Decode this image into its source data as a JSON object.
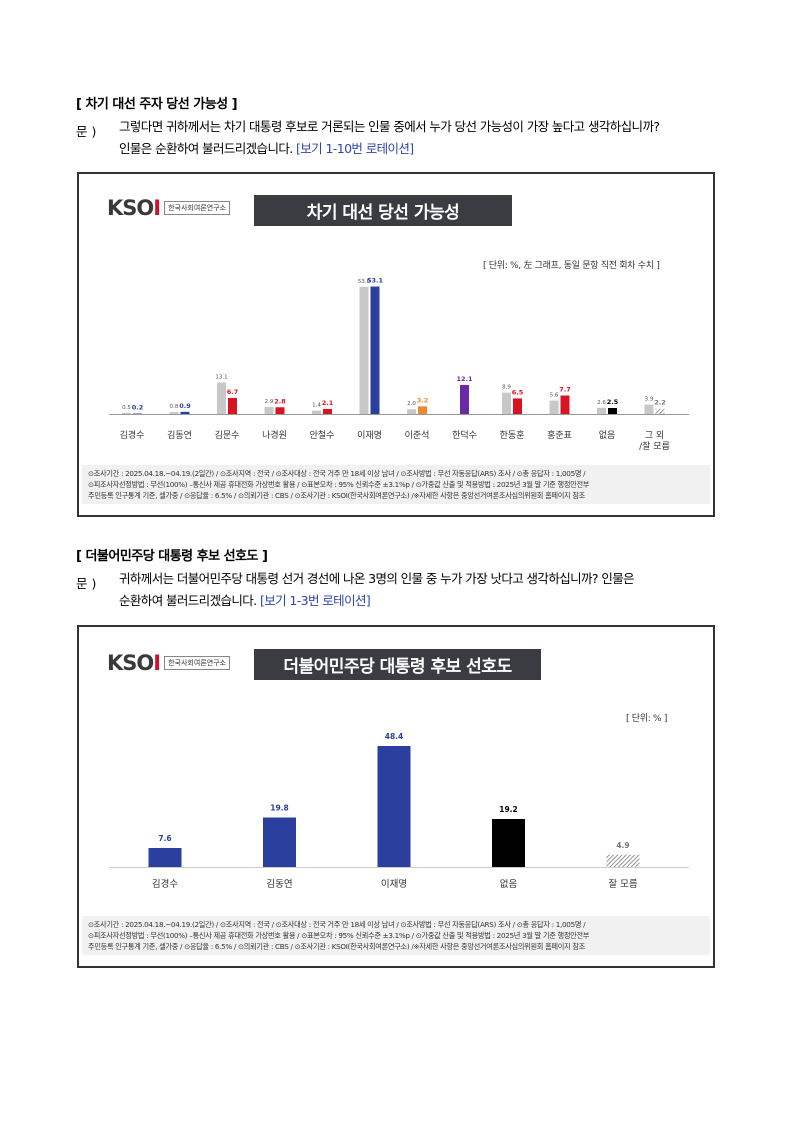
{
  "section1": {
    "heading": "[ 차기 대선 주자 당선 가능성 ]",
    "q_label": "문 )",
    "q_line1": "그렇다면 귀하께서는 차기 대통령 후보로 거론되는 인물 중에서 누가 당선 가능성이 가장 높다고 생각하십니까?",
    "q_line2": "인물은 순환하여 불러드리겠습니다.",
    "rotation": "[보기 1-10번 로테이션]"
  },
  "section2": {
    "heading": "[ 더불어민주당 대통령 후보 선호도 ]",
    "q_label": "문 )",
    "q_line1": "귀하께서는 더불어민주당 대통령 선거 경선에 나온 3명의 인물 중 누가 가장 낫다고 생각하십니까? 인물은",
    "q_line2": "순환하여 불러드리겠습니다.",
    "rotation": "[보기 1-3번 로테이션]"
  },
  "logo": {
    "mark": "KSOI",
    "sub": "한국사회여론연구소"
  },
  "footer": {
    "line1": "⊙조사기간 : 2025.04.18.~04.19.(2일간) / ⊙조사지역 : 전국 / ⊙조사대상 : 전국 거주 만 18세 이상 남녀 / ⊙조사방법 : 무선 자동응답(ARS) 조사 / ⊙총 응답자 : 1,005명 /",
    "line2": "⊙피조사자선정방법 : 무선(100%) –통신사 제공 휴대전화 가상번호 활용 / ⊙표본오차 : 95% 신뢰수준 ±3.1%p / ⊙가중값 산출 및 적용방법 : 2025년 3월 말 기준 행정안전부",
    "line3": "주민등록 인구통계 기준, 셀가중 / ⊙응답율 : 6.5% / ⊙의뢰기관 : CBS / ⊙조사기관 : KSOI(한국사회여론연구소) /※자세한 사항은 중앙선거여론조사심의위원회 홈페이지 참조"
  },
  "chart_data": [
    {
      "type": "bar",
      "title": "차기 대선 당선 가능성",
      "unit_note": "[ 단위: %, 左 그래프, 동일 문항 직전 회차 수치 ]",
      "categories": [
        "김경수",
        "김동연",
        "김문수",
        "나경원",
        "안철수",
        "이재명",
        "이준석",
        "한덕수",
        "한동훈",
        "홍준표",
        "없음",
        "그 외\n/잘 모름"
      ],
      "series": [
        {
          "values": [
            0.5,
            0.8,
            13.1,
            2.9,
            1.4,
            53.0,
            2.0,
            null,
            8.9,
            5.6,
            2.6,
            3.9
          ],
          "color": "#c8c8c8"
        },
        {
          "values": [
            0.2,
            0.9,
            6.7,
            2.8,
            2.1,
            53.1,
            3.2,
            12.1,
            6.5,
            7.7,
            2.5,
            2.2
          ],
          "colors": [
            "#2b3f9e",
            "#2b3f9e",
            "#d81422",
            "#d81422",
            "#d81422",
            "#2b3f9e",
            "#f08a2c",
            "#6a2aa8",
            "#d81422",
            "#d81422",
            "#000000",
            "hatch"
          ]
        }
      ],
      "ylim": [
        0,
        60
      ]
    },
    {
      "type": "bar",
      "title": "더불어민주당 대통령 후보 선호도",
      "unit_note": "[ 단위: % ]",
      "categories": [
        "김경수",
        "김동연",
        "이재명",
        "없음",
        "잘 모름"
      ],
      "values": [
        7.6,
        19.8,
        48.4,
        19.2,
        4.9
      ],
      "colors": [
        "#2b3f9e",
        "#2b3f9e",
        "#2b3f9e",
        "#000000",
        "hatch"
      ],
      "ylim": [
        0,
        55
      ]
    }
  ]
}
